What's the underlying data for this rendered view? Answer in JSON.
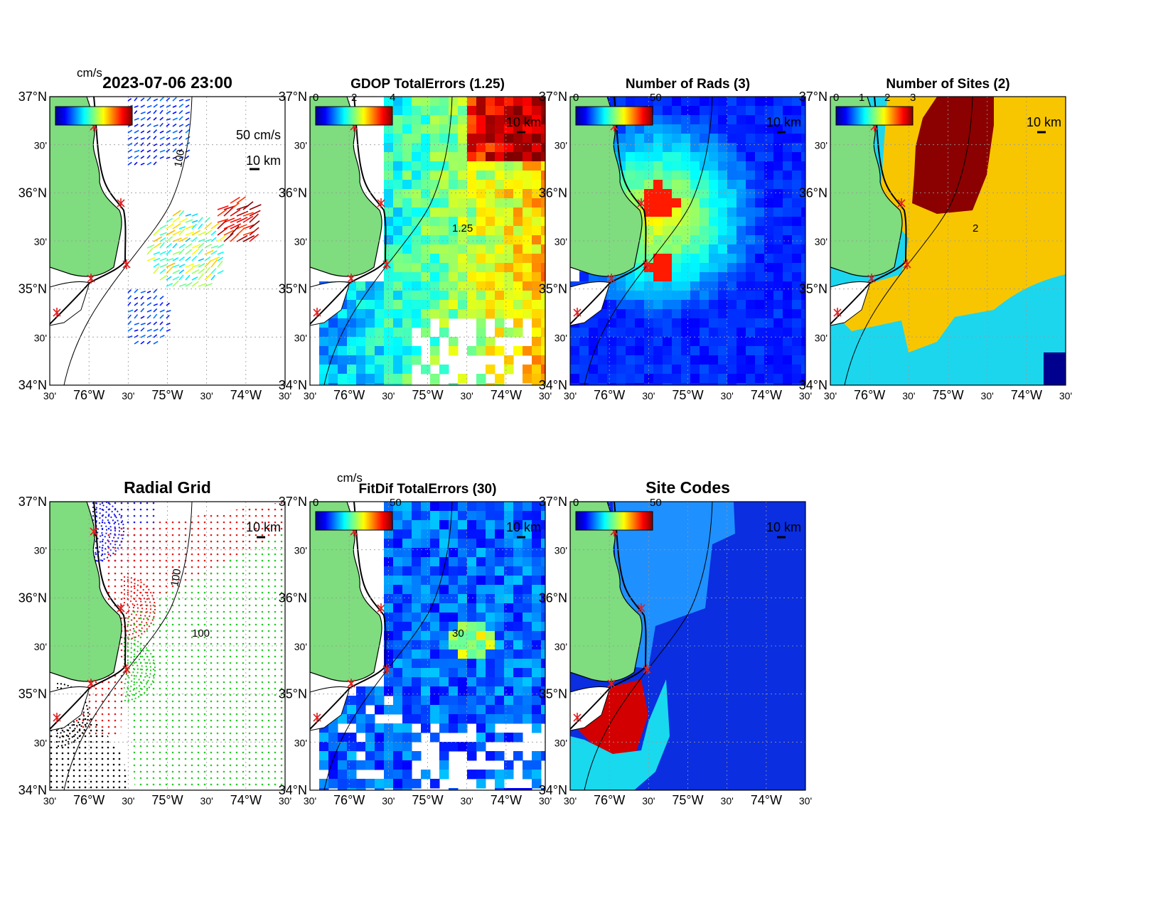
{
  "panels": [
    {
      "id": "velocity",
      "title": "2023-07-06 23:00",
      "cb_unit": "cm/s",
      "cb_ticks": [],
      "scale_arrow": "50 cm/s",
      "scale_bar": "10 km"
    },
    {
      "id": "gdop",
      "title": "GDOP TotalErrors (1.25)",
      "cb_unit": "",
      "cb_ticks": [
        "0",
        "2",
        "4"
      ],
      "scale_bar": "10 km",
      "contour_label": "1.25"
    },
    {
      "id": "rads",
      "title": "Number of Rads (3)",
      "cb_unit": "",
      "cb_ticks": [
        "0",
        "50"
      ],
      "scale_bar": "10 km"
    },
    {
      "id": "sites",
      "title": "Number of Sites (2)",
      "cb_unit": "",
      "cb_ticks": [
        "0",
        "1",
        "2",
        "3"
      ],
      "scale_bar": "10 km",
      "contour_label": "2"
    },
    {
      "id": "radial",
      "title": "Radial Grid",
      "cb_unit": "",
      "cb_ticks": [],
      "scale_bar": "10 km",
      "contour_label": "100"
    },
    {
      "id": "fitdif",
      "title": "FitDif TotalErrors (30)",
      "cb_unit": "cm/s",
      "cb_ticks": [
        "0",
        "50"
      ],
      "scale_bar": "10 km",
      "contour_label": "30"
    },
    {
      "id": "sitecodes",
      "title": "Site Codes",
      "cb_unit": "",
      "cb_ticks": [
        "0",
        "50"
      ],
      "scale_bar": "10 km"
    }
  ],
  "axes": {
    "lat_labels": [
      "37°N",
      "30'",
      "36°N",
      "30'",
      "35°N",
      "30'",
      "34°N"
    ],
    "lon_labels": [
      "30'",
      "76°W",
      "30'",
      "75°W",
      "30'",
      "74°W",
      "30'"
    ]
  },
  "bathymetry_label": "100",
  "colors": {
    "land": "#7fdc7f",
    "ocean_blue": "#0a2ee0",
    "site_marker": "#e02020",
    "sites_yellow": "#f7c600",
    "sites_cyan": "#1cd6ee",
    "sites_dark": "#8b0000",
    "grid_green": "#22cc22",
    "grid_red": "#e81818",
    "grid_blue": "#1a1ae8",
    "grid_black": "#000000"
  }
}
